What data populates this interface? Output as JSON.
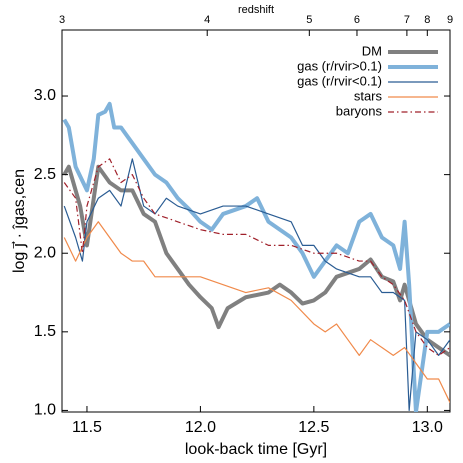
{
  "chart_data": {
    "type": "line",
    "xlabel": "look-back time [Gyr]",
    "ylabel": "log j⃗ · ĵgas,cen",
    "x2label": "redshift",
    "xlim": [
      11.39,
      13.1
    ],
    "ylim": [
      0.99,
      3.42
    ],
    "xticks": [
      11.5,
      12.0,
      12.5,
      13.0
    ],
    "xtick_labels": [
      "11.5",
      "12.0",
      "12.5",
      "13.0"
    ],
    "yticks": [
      {
        "value": 1,
        "label": "1.0"
      },
      1.5,
      {
        "value": 2,
        "label": "2.0"
      },
      2.5,
      {
        "value": 3,
        "label": "3.0"
      }
    ],
    "x2ticks": [
      {
        "value": 11.39,
        "label": "3"
      },
      {
        "value": 12.03,
        "label": "4"
      },
      {
        "value": 12.48,
        "label": "5"
      },
      {
        "value": 12.69,
        "label": "6"
      },
      {
        "value": 12.91,
        "label": "7"
      },
      {
        "value": 13.0,
        "label": "8"
      },
      {
        "value": 13.1,
        "label": "9"
      }
    ],
    "legend": "upper right",
    "series": [
      {
        "name": "DM",
        "color": "#808080",
        "width": 4,
        "dash": "none",
        "x": [
          11.4,
          11.42,
          11.47,
          11.5,
          11.55,
          11.6,
          11.65,
          11.7,
          11.75,
          11.8,
          11.85,
          11.9,
          11.95,
          12.0,
          12.05,
          12.08,
          12.12,
          12.2,
          12.3,
          12.35,
          12.4,
          12.45,
          12.5,
          12.55,
          12.6,
          12.7,
          12.75,
          12.8,
          12.85,
          12.88,
          12.9,
          12.95,
          13.0,
          13.05,
          13.1
        ],
        "values": [
          2.5,
          2.55,
          2.3,
          2.05,
          2.55,
          2.45,
          2.4,
          2.4,
          2.25,
          2.2,
          2.0,
          1.9,
          1.8,
          1.72,
          1.65,
          1.53,
          1.65,
          1.72,
          1.75,
          1.8,
          1.75,
          1.68,
          1.7,
          1.75,
          1.85,
          1.9,
          1.96,
          1.85,
          1.82,
          1.7,
          1.8,
          1.55,
          1.45,
          1.4,
          1.35
        ]
      },
      {
        "name": "gas (r/rvir>0.1)",
        "color": "#7fb2da",
        "width": 4,
        "dash": "none",
        "x": [
          11.4,
          11.42,
          11.45,
          11.5,
          11.53,
          11.55,
          11.58,
          11.6,
          11.62,
          11.65,
          11.7,
          11.75,
          11.8,
          11.85,
          11.9,
          11.95,
          12.0,
          12.05,
          12.1,
          12.2,
          12.25,
          12.3,
          12.35,
          12.4,
          12.45,
          12.5,
          12.55,
          12.6,
          12.65,
          12.7,
          12.75,
          12.8,
          12.85,
          12.88,
          12.9,
          12.92,
          12.95,
          13.0,
          13.05,
          13.1
        ],
        "values": [
          2.85,
          2.8,
          2.55,
          2.4,
          2.6,
          2.88,
          2.9,
          2.95,
          2.8,
          2.8,
          2.7,
          2.6,
          2.5,
          2.45,
          2.35,
          2.28,
          2.2,
          2.15,
          2.25,
          2.3,
          2.35,
          2.2,
          2.15,
          2.1,
          2.0,
          1.85,
          1.95,
          2.05,
          2.0,
          2.2,
          2.25,
          2.1,
          2.05,
          1.9,
          2.2,
          1.8,
          0.99,
          1.5,
          1.5,
          1.55
        ]
      },
      {
        "name": "gas (r/rvir<0.1)",
        "color": "#2a5c93",
        "width": 1.2,
        "dash": "none",
        "x": [
          11.4,
          11.45,
          11.48,
          11.5,
          11.55,
          11.6,
          11.65,
          11.7,
          11.75,
          11.8,
          11.85,
          11.9,
          12.0,
          12.1,
          12.2,
          12.3,
          12.4,
          12.45,
          12.5,
          12.55,
          12.6,
          12.7,
          12.75,
          12.8,
          12.85,
          12.9,
          12.92,
          12.95,
          13.0,
          13.05,
          13.1
        ],
        "values": [
          2.3,
          2.1,
          1.95,
          2.2,
          2.35,
          2.4,
          2.3,
          2.6,
          2.3,
          2.25,
          2.35,
          2.3,
          2.25,
          2.3,
          2.3,
          2.25,
          2.2,
          2.05,
          2.05,
          1.95,
          1.9,
          1.85,
          1.85,
          1.75,
          1.75,
          1.7,
          1.0,
          1.5,
          1.45,
          1.35,
          1.45
        ]
      },
      {
        "name": "stars",
        "color": "#f08a4b",
        "width": 1.2,
        "dash": "none",
        "x": [
          11.4,
          11.45,
          11.5,
          11.55,
          11.6,
          11.65,
          11.7,
          11.75,
          11.8,
          11.9,
          12.0,
          12.1,
          12.2,
          12.3,
          12.4,
          12.5,
          12.55,
          12.6,
          12.65,
          12.7,
          12.75,
          12.8,
          12.85,
          12.9,
          12.95,
          13.0,
          13.05,
          13.1
        ],
        "values": [
          2.1,
          1.95,
          2.1,
          2.2,
          2.1,
          2.0,
          1.95,
          1.95,
          1.85,
          1.85,
          1.85,
          1.8,
          1.75,
          1.78,
          1.7,
          1.55,
          1.5,
          1.55,
          1.45,
          1.35,
          1.45,
          1.4,
          1.35,
          1.4,
          1.3,
          1.2,
          1.2,
          1.05
        ]
      },
      {
        "name": "baryons",
        "color": "#a0202a",
        "width": 1.2,
        "dash": "6,3,1.5,3",
        "x": [
          11.4,
          11.45,
          11.48,
          11.5,
          11.55,
          11.6,
          11.65,
          11.7,
          11.75,
          11.8,
          11.9,
          12.0,
          12.1,
          12.2,
          12.3,
          12.4,
          12.5,
          12.6,
          12.7,
          12.75,
          12.8,
          12.85,
          12.9,
          12.95,
          13.0,
          13.05,
          13.1
        ],
        "values": [
          2.45,
          2.35,
          2.0,
          2.3,
          2.55,
          2.6,
          2.45,
          2.5,
          2.35,
          2.25,
          2.2,
          2.15,
          2.12,
          2.12,
          2.05,
          2.05,
          2.0,
          2.0,
          1.95,
          1.95,
          1.85,
          1.8,
          1.7,
          1.5,
          1.4,
          1.35,
          1.4
        ]
      }
    ]
  }
}
